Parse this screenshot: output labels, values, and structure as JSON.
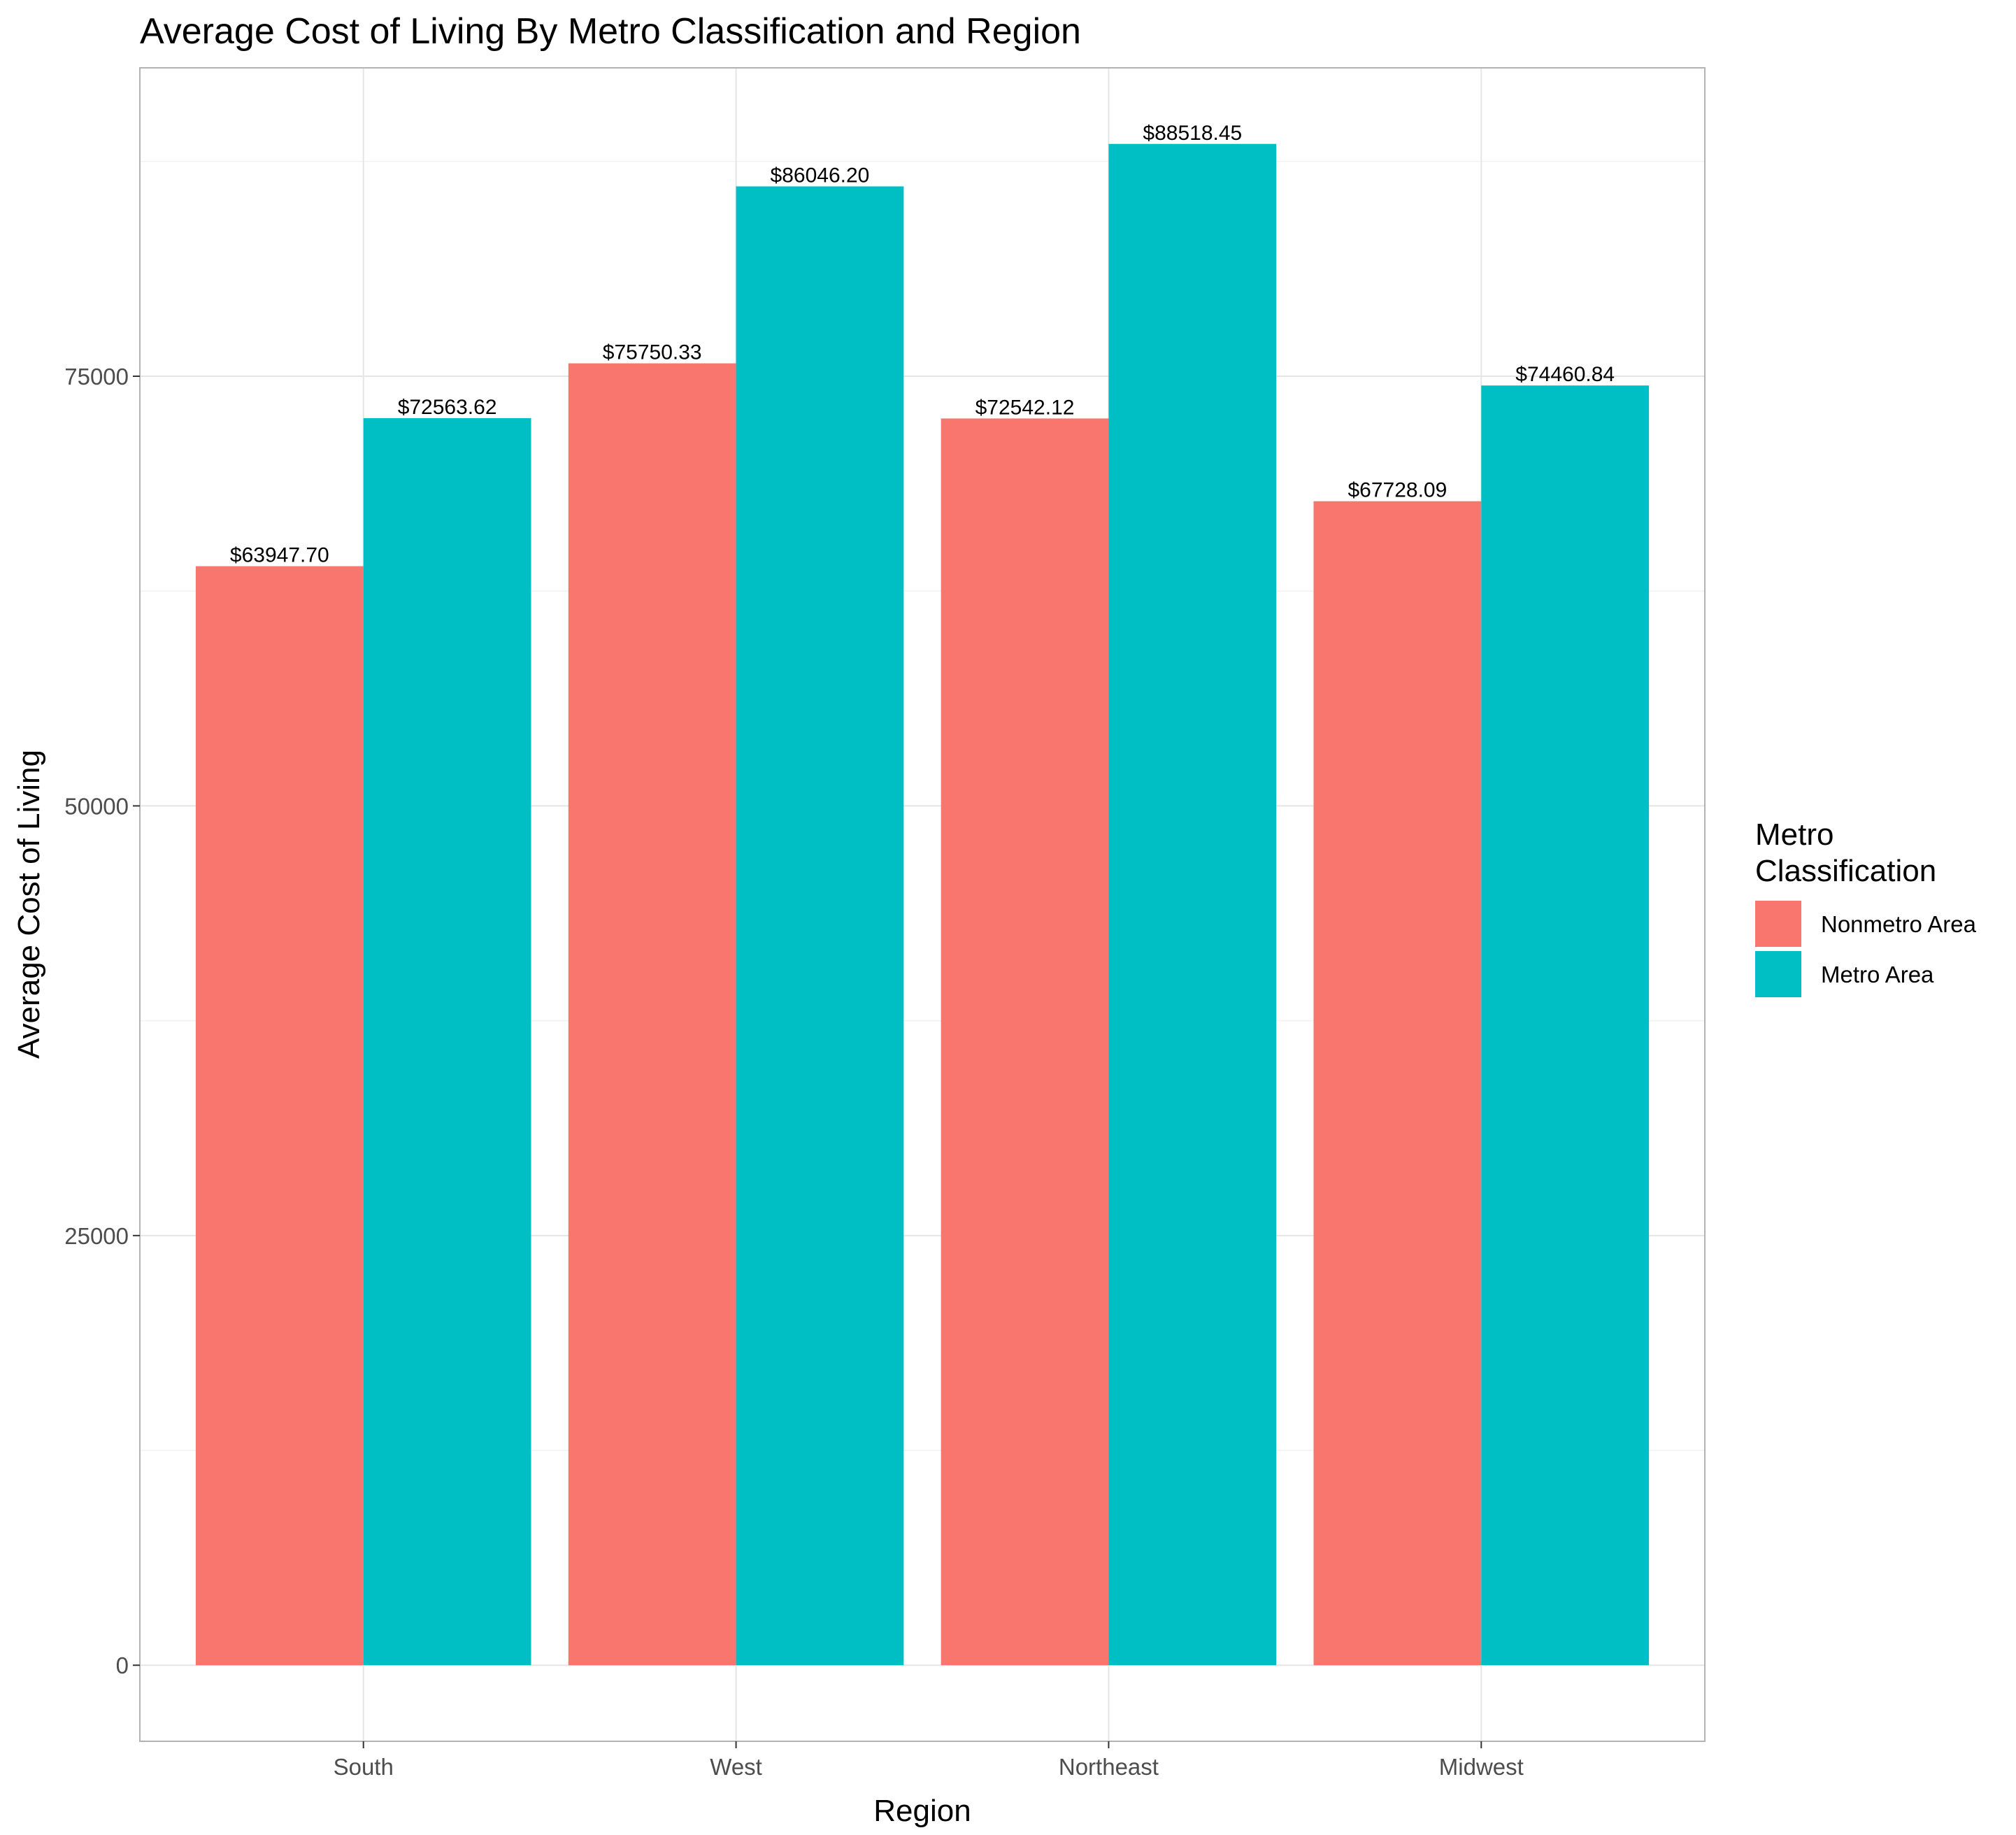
{
  "chart_data": {
    "type": "bar",
    "title": "Average Cost of Living By Metro Classification and Region",
    "xlabel": "Region",
    "ylabel": "Average Cost of Living",
    "categories": [
      "South",
      "West",
      "Northeast",
      "Midwest"
    ],
    "series": [
      {
        "name": "Nonmetro Area",
        "color": "#F8766D",
        "values": [
          63947.7,
          75750.33,
          72542.12,
          67728.09
        ],
        "labels": [
          "$63947.70",
          "$75750.33",
          "$72542.12",
          "$67728.09"
        ]
      },
      {
        "name": "Metro Area",
        "color": "#00BFC4",
        "values": [
          72563.62,
          86046.2,
          88518.45,
          74460.84
        ],
        "labels": [
          "$72563.62",
          "$86046.20",
          "$88518.45",
          "$74460.84"
        ]
      }
    ],
    "yticks": [
      0,
      25000,
      50000,
      75000
    ],
    "ytick_labels": [
      "0",
      "25000",
      "50000",
      "75000"
    ],
    "ylim": [
      -4426,
      92944
    ],
    "grid": true,
    "legend": {
      "title_lines": [
        "Metro",
        "Classification"
      ],
      "position": "right"
    }
  }
}
